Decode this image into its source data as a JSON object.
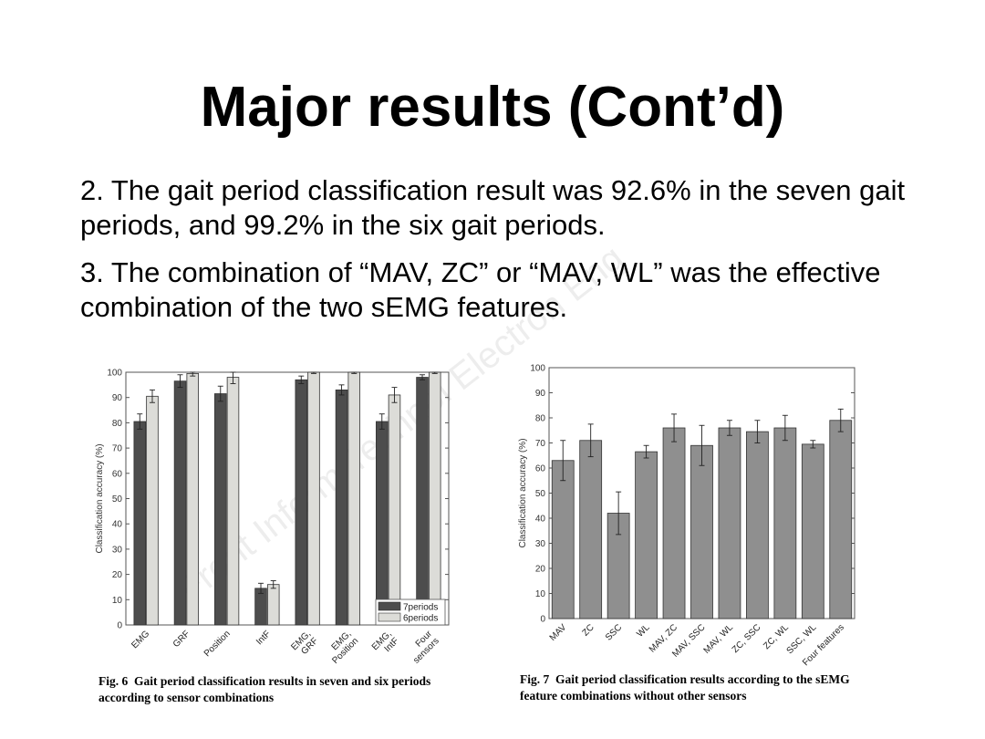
{
  "slide": {
    "title": "Major results (Cont’d)",
    "bullets": [
      "2. The gait period classification result was 92.6% in the seven gait periods, and 99.2% in the six gait periods.",
      "3. The combination of “MAV, ZC” or “MAV, WL” was the effective combination of the two sEMG features."
    ],
    "watermark": "Front Inform Technol Electron Eng"
  },
  "fig6": {
    "caption_label": "Fig. 6",
    "caption_text": "Gait period classification results in seven and six periods according to sensor combinations"
  },
  "fig7": {
    "caption_label": "Fig. 7",
    "caption_text": "Gait period classification results according to the sEMG feature combinations without other sensors"
  },
  "chart_data": [
    {
      "type": "bar",
      "ylabel": "Classification accuracy (%)",
      "ylim": [
        0,
        100
      ],
      "yticks": [
        0,
        10,
        20,
        30,
        40,
        50,
        60,
        70,
        80,
        90,
        100
      ],
      "categories": [
        "EMG",
        "GRF",
        "Position",
        "IntF",
        "EMG, GRF",
        "EMG, Position",
        "EMG, IntF",
        "Four sensors"
      ],
      "series": [
        {
          "name": "7periods",
          "color": "#4d4d4d",
          "values": [
            80.5,
            96.5,
            91.5,
            14.5,
            97,
            93,
            80.5,
            98
          ],
          "errors": [
            3,
            2.5,
            3,
            2,
            1.5,
            2,
            3,
            1
          ]
        },
        {
          "name": "6periods",
          "color": "#dcdcd8",
          "values": [
            90.5,
            99.5,
            98,
            16,
            100,
            100,
            91,
            100
          ],
          "errors": [
            2.5,
            1,
            2.5,
            1.5,
            0.5,
            0.5,
            3,
            0.5
          ]
        }
      ],
      "legend": "bottom-right",
      "grid": false
    },
    {
      "type": "bar",
      "ylabel": "Classification accuracy (%)",
      "ylim": [
        0,
        100
      ],
      "yticks": [
        0,
        10,
        20,
        30,
        40,
        50,
        60,
        70,
        80,
        90,
        100
      ],
      "categories": [
        "MAV",
        "ZC",
        "SSC",
        "WL",
        "MAV, ZC",
        "MAV, SSC",
        "MAV, WL",
        "ZC, SSC",
        "ZC, WL",
        "SSC, WL",
        "Four features"
      ],
      "series": [
        {
          "color": "#8f8f8f",
          "values": [
            63,
            71,
            42,
            66.5,
            76,
            69,
            76,
            74.5,
            76,
            69.5,
            79
          ],
          "errors": [
            8,
            6.5,
            8.5,
            2.5,
            5.5,
            8,
            3,
            4.5,
            5,
            1.5,
            4.5
          ]
        }
      ],
      "grid": false
    }
  ]
}
